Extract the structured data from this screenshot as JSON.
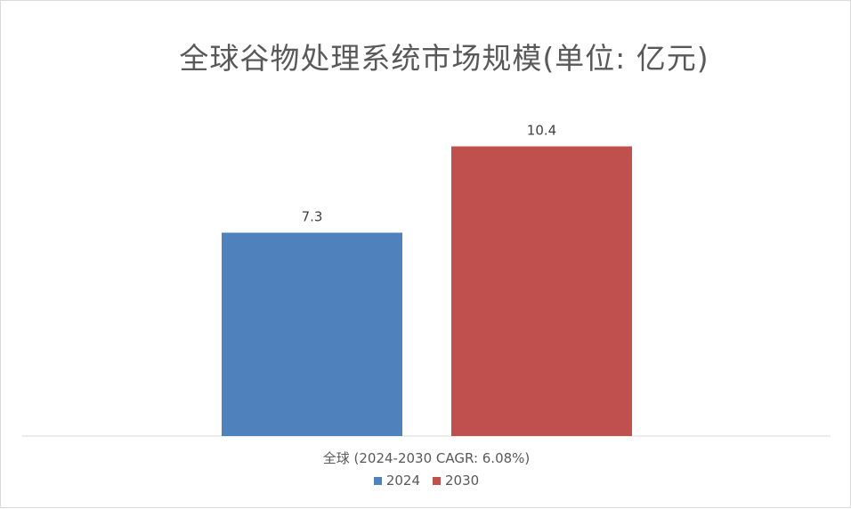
{
  "chart_data": {
    "type": "bar",
    "title": "全球谷物处理系统市场规模(单位: 亿元)",
    "categories": [
      "全球 (2024-2030 CAGR: 6.08%)"
    ],
    "series": [
      {
        "name": "2024",
        "values": [
          7.3
        ],
        "color": "#4f81bd",
        "label": "7.3"
      },
      {
        "name": "2030",
        "values": [
          10.4
        ],
        "color": "#c0504d",
        "label": "10.4"
      }
    ],
    "ylim": [
      0,
      12
    ],
    "grid": false,
    "legend": "bottom"
  }
}
